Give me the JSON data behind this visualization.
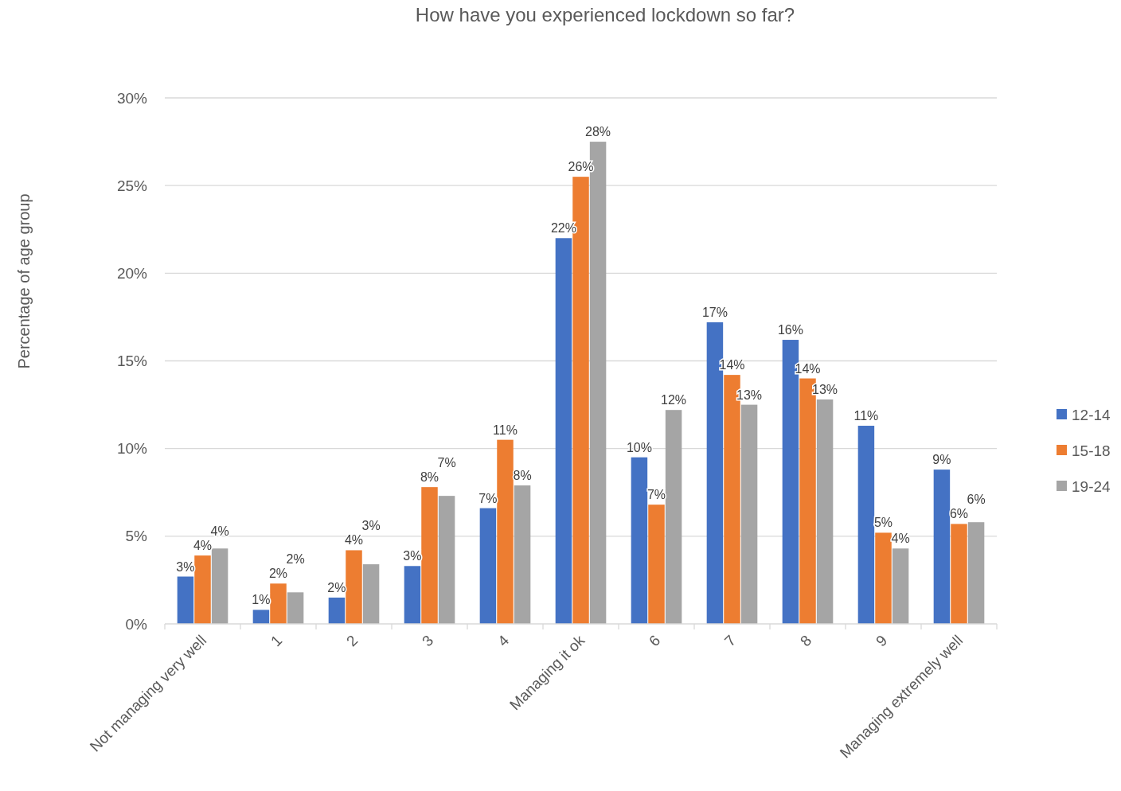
{
  "chart_data": {
    "type": "bar",
    "title": "How have you experienced lockdown so far?",
    "ylabel": "Percentage of age group",
    "categories": [
      "Not managing very well",
      "1",
      "2",
      "3",
      "4",
      "Managing it ok",
      "6",
      "7",
      "8",
      "9",
      "Managing extremely well"
    ],
    "series": [
      {
        "name": "12-14",
        "color": "#4472c4",
        "values": [
          2.7,
          0.8,
          1.5,
          3.3,
          6.6,
          22.0,
          9.5,
          17.2,
          16.2,
          11.3,
          8.8
        ],
        "value_labels": [
          "3%",
          "1%",
          "2%",
          "3%",
          "7%",
          "22%",
          "10%",
          "17%",
          "16%",
          "11%",
          "9%"
        ]
      },
      {
        "name": "15-18",
        "color": "#ed7d31",
        "values": [
          3.9,
          2.3,
          4.2,
          7.8,
          10.5,
          25.5,
          6.8,
          14.2,
          14.0,
          5.2,
          5.7
        ],
        "value_labels": [
          "4%",
          "2%",
          "4%",
          "8%",
          "11%",
          "26%",
          "7%",
          "14%",
          "14%",
          "5%",
          "6%"
        ]
      },
      {
        "name": "19-24",
        "color": "#a5a5a5",
        "values": [
          4.3,
          1.8,
          3.4,
          7.3,
          7.9,
          27.5,
          12.2,
          12.5,
          12.8,
          4.3,
          5.8
        ],
        "value_labels": [
          "4%",
          "2%",
          "3%",
          "7%",
          "8%",
          "28%",
          "12%",
          "13%",
          "13%",
          "4%",
          "6%"
        ]
      }
    ],
    "ylim": [
      0,
      30
    ],
    "yticks": [
      {
        "value": 0,
        "label": "0%"
      },
      {
        "value": 5,
        "label": "5%"
      },
      {
        "value": 10,
        "label": "10%"
      },
      {
        "value": 15,
        "label": "15%"
      },
      {
        "value": 20,
        "label": "20%"
      },
      {
        "value": 25,
        "label": "25%"
      },
      {
        "value": 30,
        "label": "30%"
      }
    ],
    "grid": "y",
    "legend": "right"
  }
}
